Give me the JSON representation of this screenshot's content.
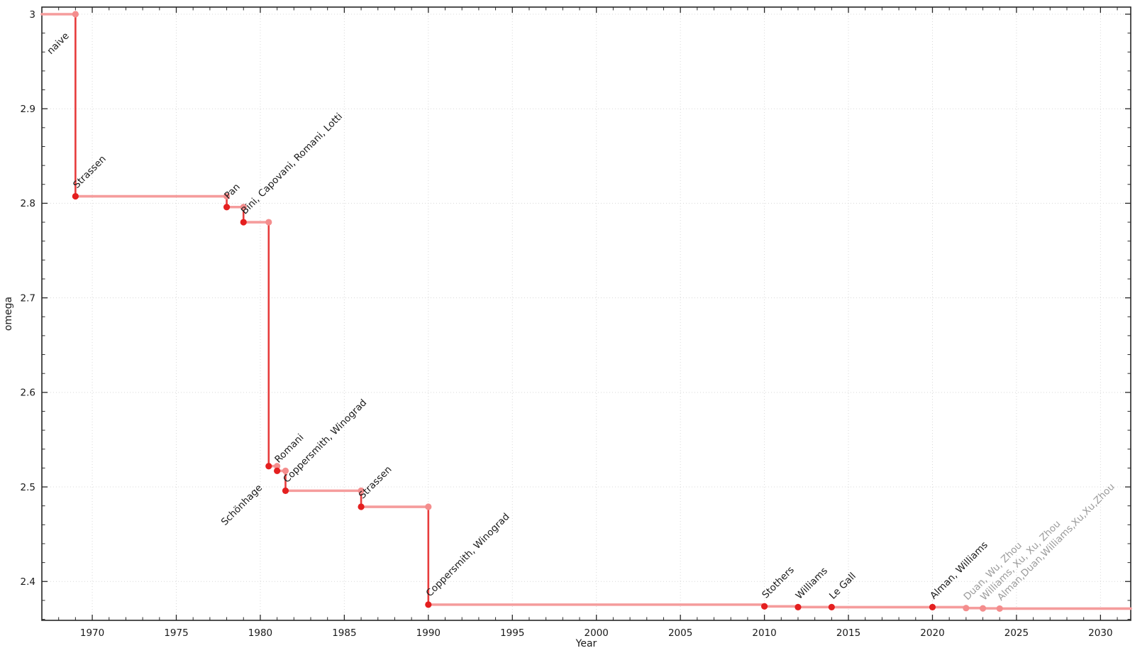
{
  "chart_data": {
    "type": "line",
    "subtype": "step-post",
    "title": "",
    "xlabel": "Year",
    "ylabel": "omega",
    "xlim": [
      1967,
      2031.8
    ],
    "ylim": [
      2.3589,
      3.0075
    ],
    "grid": "dotted-major-both-axes",
    "legend": "none",
    "x_major_ticks": [
      1970,
      1975,
      1980,
      1985,
      1990,
      1995,
      2000,
      2005,
      2010,
      2015,
      2020,
      2025,
      2030
    ],
    "x_minor_step": 1,
    "y_major_ticks": [
      2.4,
      2.5,
      2.6,
      2.7,
      2.8,
      2.9,
      3.0
    ],
    "y_tick_labels": [
      "2.4",
      "2.5",
      "2.6",
      "2.7",
      "2.8",
      "2.9",
      "3"
    ],
    "y_minor_step": 0.02,
    "line_extends_to_right_edge": true,
    "colors": {
      "strong_line": "#e73c3c",
      "light_line": "#f59c9c",
      "strong_dot": "#e41f1f",
      "light_dot": "#f48d8d",
      "label_text": "#1a1a1a",
      "label_text_light": "#9b9b9b",
      "grid": "#d8d8d8",
      "spine": "#262626",
      "background": "#ffffff"
    },
    "points": [
      {
        "label": "naive",
        "year": 1967,
        "omega": 3.0,
        "tier": "strong",
        "dot": false,
        "label_anchor": "end",
        "label_at_year": 1969
      },
      {
        "label": "Strassen",
        "year": 1969,
        "omega": 2.8074,
        "tier": "strong"
      },
      {
        "label": "Pan",
        "year": 1978,
        "omega": 2.796,
        "tier": "strong"
      },
      {
        "label": "Bini, Capovani, Romani, Lotti",
        "year": 1979,
        "omega": 2.78,
        "tier": "strong"
      },
      {
        "label": "Schönhage",
        "year": 1980.5,
        "omega": 2.522,
        "tier": "strong",
        "label_anchor": "end"
      },
      {
        "label": "Romani",
        "year": 1981,
        "omega": 2.517,
        "tier": "strong"
      },
      {
        "label": "Coppersmith, Winograd",
        "year": 1981.5,
        "omega": 2.496,
        "tier": "strong"
      },
      {
        "label": "Strassen",
        "year": 1986,
        "omega": 2.479,
        "tier": "strong"
      },
      {
        "label": "Coppersmith, Winograd",
        "year": 1990,
        "omega": 2.3755,
        "tier": "strong"
      },
      {
        "label": "Stothers",
        "year": 2010,
        "omega": 2.3737,
        "tier": "strong"
      },
      {
        "label": "Williams",
        "year": 2012,
        "omega": 2.3729,
        "tier": "strong"
      },
      {
        "label": "Le Gall",
        "year": 2014,
        "omega": 2.37287,
        "tier": "strong"
      },
      {
        "label": "Alman, Williams",
        "year": 2020,
        "omega": 2.37286,
        "tier": "strong"
      },
      {
        "label": "Duan, Wu, Zhou",
        "year": 2022,
        "omega": 2.37188,
        "tier": "light"
      },
      {
        "label": "Williams, Xu, Xu, Zhou",
        "year": 2023,
        "omega": 2.37156,
        "tier": "light"
      },
      {
        "label": "Alman,Duan,Williams,Xu,Xu,Zhou",
        "year": 2024,
        "omega": 2.37134,
        "tier": "light"
      }
    ]
  }
}
